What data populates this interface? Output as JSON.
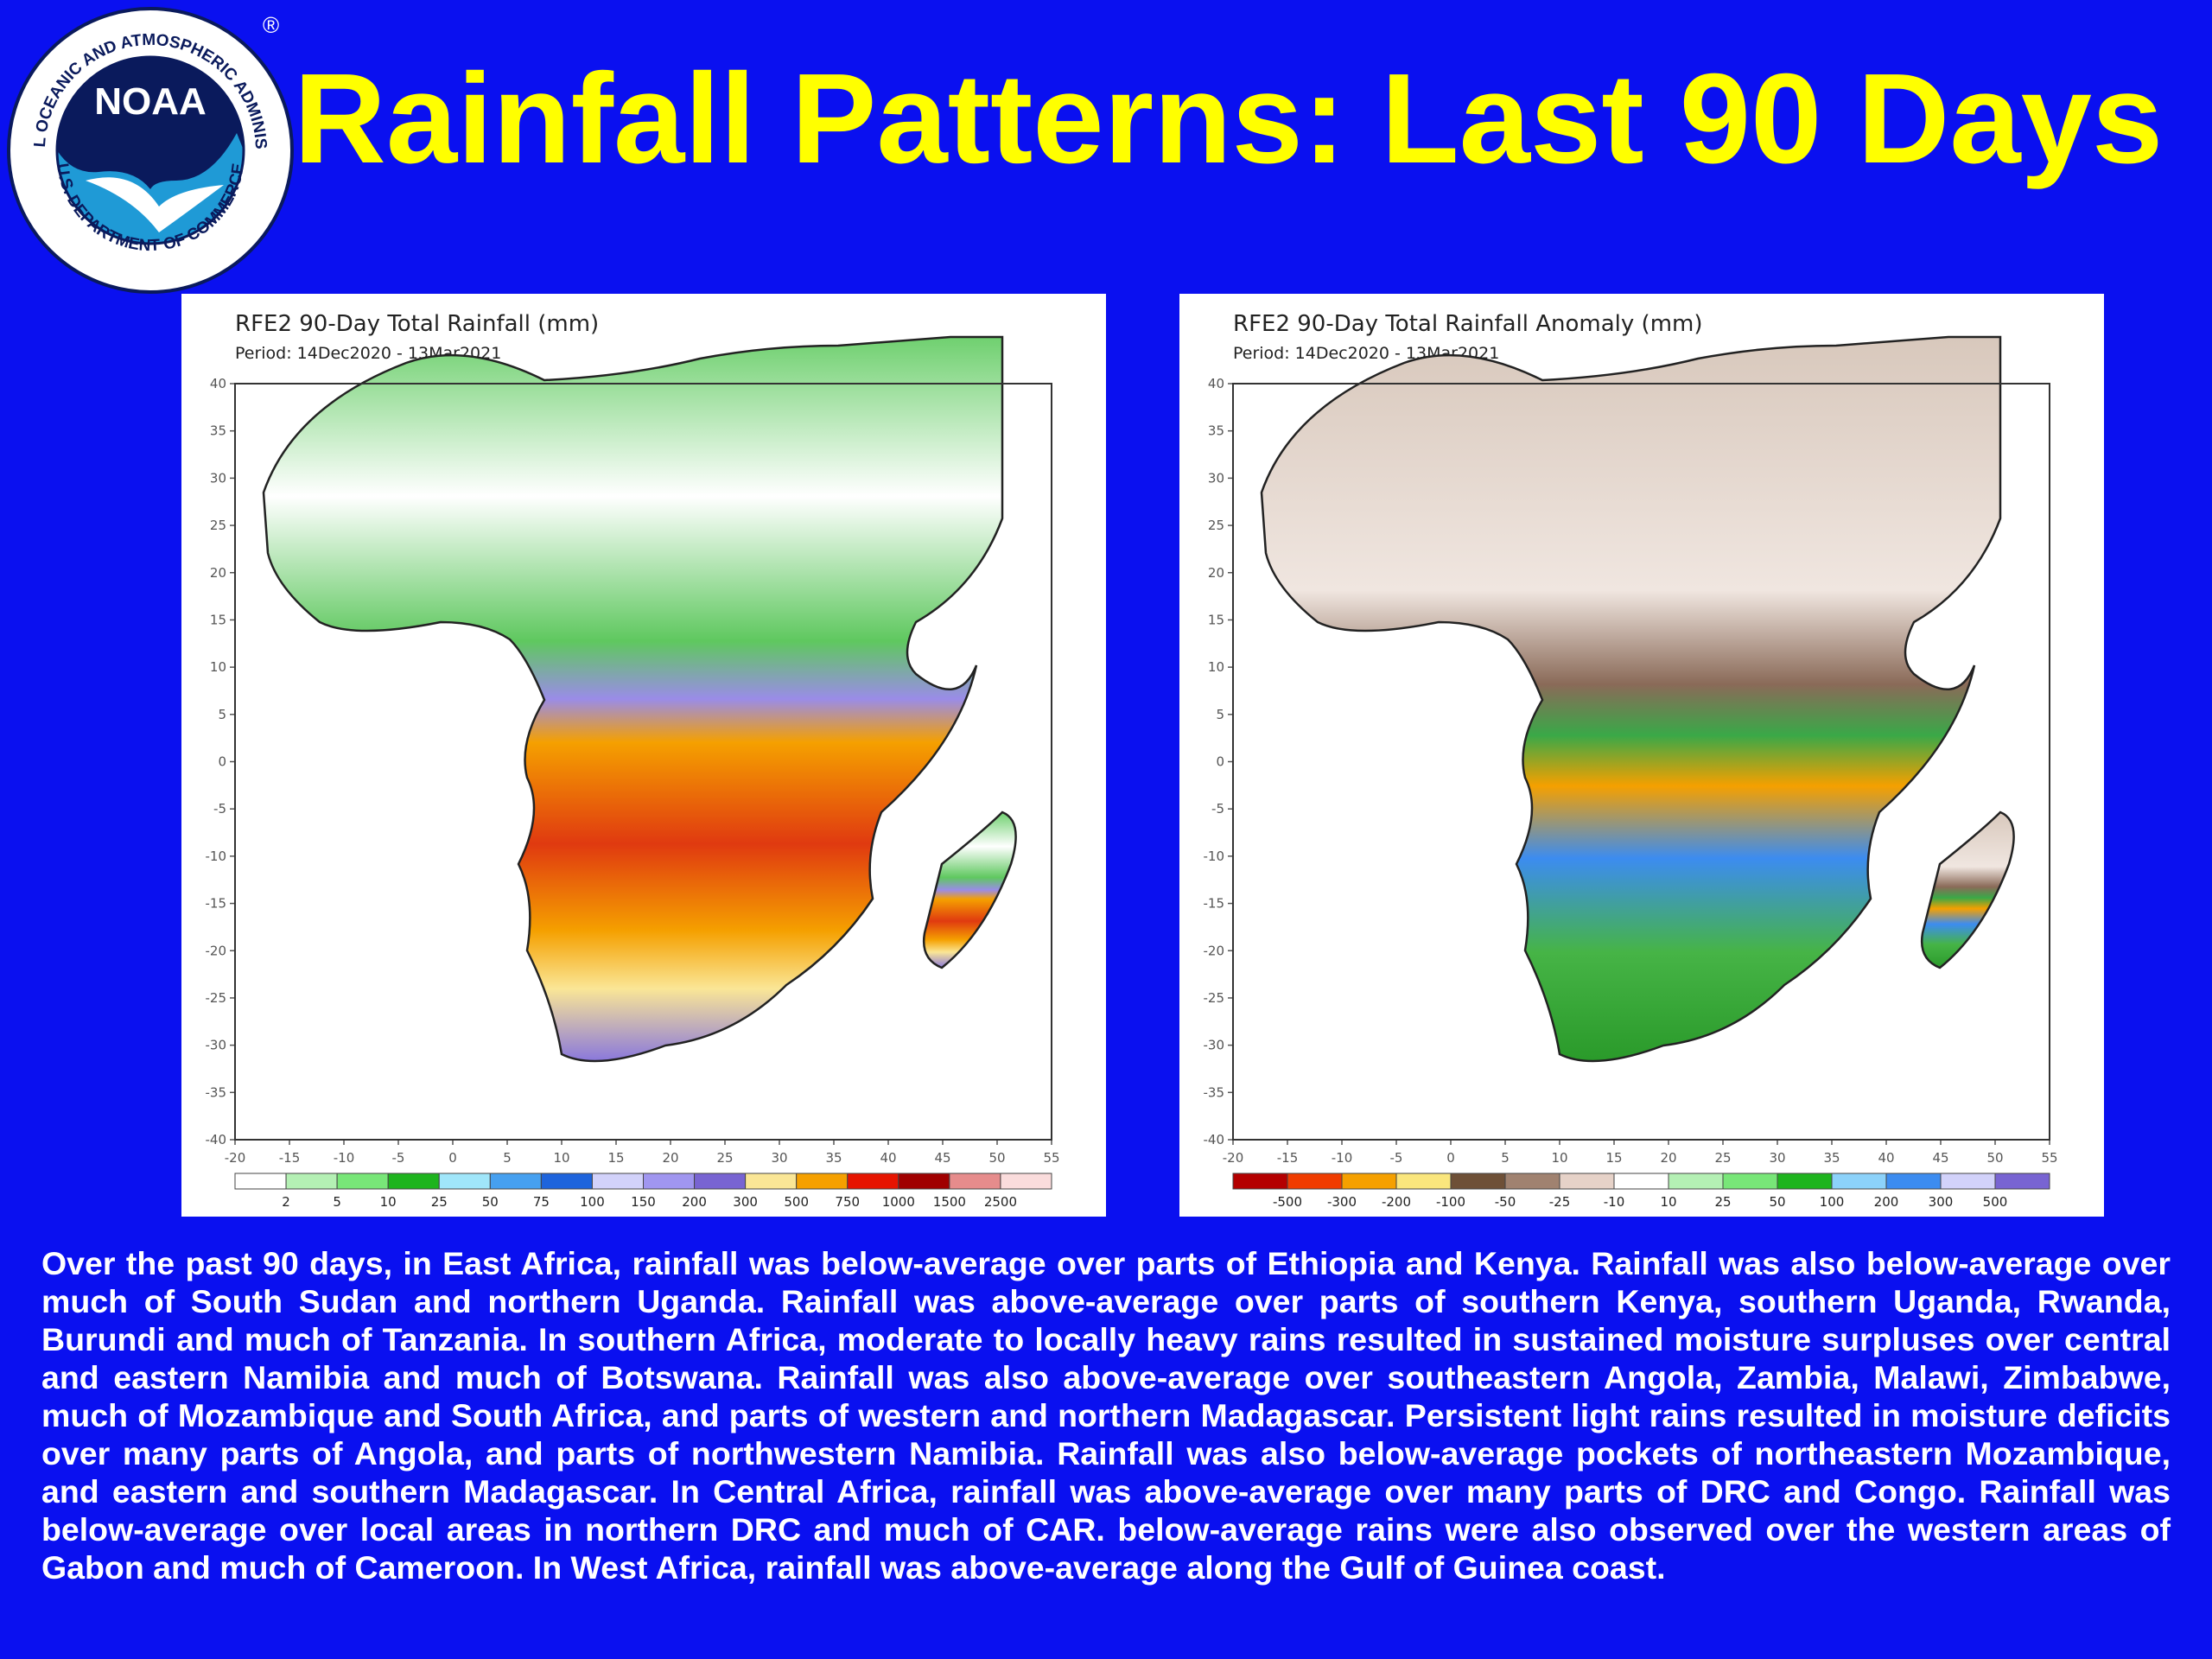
{
  "slide": {
    "title": "Rainfall Patterns: Last 90 Days",
    "logo": {
      "wordmark": "NOAA",
      "ring_text": "NATIONAL OCEANIC AND ATMOSPHERIC ADMINISTRATION",
      "bottom_text": "U.S. DEPARTMENT OF COMMERCE",
      "registered_mark": "®"
    },
    "summary": "Over the past 90 days, in East Africa, rainfall was below-average over parts of Ethiopia and Kenya. Rainfall was also below-average over much of South Sudan and northern Uganda.  Rainfall was above-average over parts of southern Kenya, southern Uganda, Rwanda, Burundi and much of Tanzania. In southern Africa, moderate to locally heavy rains resulted in sustained moisture surpluses over central and eastern Namibia and much of Botswana.  Rainfall was also above-average over southeastern Angola, Zambia, Malawi, Zimbabwe, much of Mozambique and South Africa, and parts of western and northern Madagascar. Persistent light rains resulted in moisture deficits over many parts of  Angola, and parts of northwestern Namibia. Rainfall was also below-average pockets of northeastern Mozambique, and eastern and southern Madagascar. In Central Africa, rainfall was above-average over many parts of DRC and Congo.  Rainfall was below-average over local areas in northern DRC and much of CAR.  below-average rains were also observed over the western areas of Gabon and much of Cameroon. In West Africa, rainfall was above-average along the Gulf of Guinea coast."
  },
  "maps": [
    {
      "id": "total",
      "title": "RFE2 90-Day Total Rainfall (mm)",
      "period": "Period: 14Dec2020 - 13Mar2021",
      "axes": {
        "x_ticks": [
          "-20",
          "-15",
          "-10",
          "-5",
          "0",
          "5",
          "10",
          "15",
          "20",
          "25",
          "30",
          "35",
          "40",
          "45",
          "50",
          "55"
        ],
        "y_ticks": [
          "40",
          "35",
          "30",
          "25",
          "20",
          "15",
          "10",
          "5",
          "0",
          "-5",
          "-10",
          "-15",
          "-20",
          "-25",
          "-30",
          "-35",
          "-40"
        ]
      },
      "legend": {
        "colors": [
          "#ffffff",
          "#b4f0b4",
          "#78e678",
          "#1eb41e",
          "#a0e6fa",
          "#46a0f0",
          "#1e64dc",
          "#d2d2fa",
          "#a096f0",
          "#7864d2",
          "#fae696",
          "#f5a000",
          "#e61400",
          "#a00000",
          "#e68c8c",
          "#fadcdc"
        ],
        "labels": [
          "2",
          "5",
          "10",
          "25",
          "50",
          "75",
          "100",
          "150",
          "200",
          "300",
          "500",
          "750",
          "1000",
          "1500",
          "2500"
        ]
      }
    },
    {
      "id": "anomaly",
      "title": "RFE2 90-Day Total Rainfall Anomaly (mm)",
      "period": "Period: 14Dec2020 - 13Mar2021",
      "axes": {
        "x_ticks": [
          "-20",
          "-15",
          "-10",
          "-5",
          "0",
          "5",
          "10",
          "15",
          "20",
          "25",
          "30",
          "35",
          "40",
          "45",
          "50",
          "55"
        ],
        "y_ticks": [
          "40",
          "35",
          "30",
          "25",
          "20",
          "15",
          "10",
          "5",
          "0",
          "-5",
          "-10",
          "-15",
          "-20",
          "-25",
          "-30",
          "-35",
          "-40"
        ]
      },
      "legend": {
        "colors": [
          "#b40000",
          "#f03c00",
          "#f5a000",
          "#fae67d",
          "#6e5037",
          "#a08270",
          "#e6d2c8",
          "#ffffff",
          "#b4f0b4",
          "#78e678",
          "#1eb41e",
          "#8cd2fa",
          "#3c8cf0",
          "#d2d2fa",
          "#7864d2"
        ],
        "labels": [
          "-500",
          "-300",
          "-200",
          "-100",
          "-50",
          "-25",
          "-10",
          "10",
          "25",
          "50",
          "100",
          "200",
          "300",
          "500"
        ]
      }
    }
  ]
}
